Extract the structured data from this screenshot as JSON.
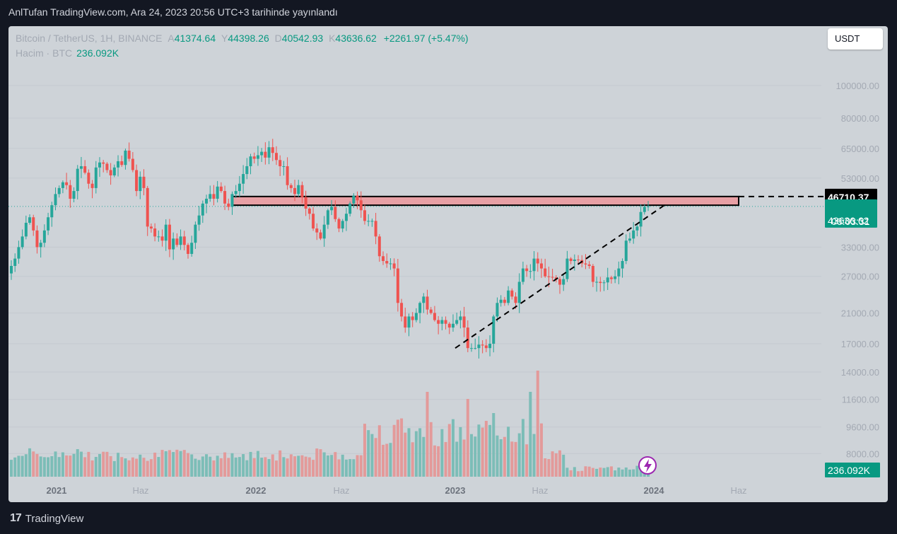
{
  "header": {
    "publish_line": "AnlTufan TradingView.com, Ara 24, 2023 20:56 UTC+3 tarihinde yayınlandı"
  },
  "symbol": {
    "name": "Bitcoin / TetherUS, 1H, BINANCE",
    "o_label": "A",
    "open": "41374.64",
    "h_label": "Y",
    "high": "44398.26",
    "l_label": "D",
    "low": "40542.93",
    "c_label": "K",
    "close": "43636.62",
    "change": "+2261.97 (+5.47%)"
  },
  "volume_legend": {
    "label": "Hacim · BTC",
    "value": "236.092K"
  },
  "currency_button": "USDT",
  "price_labels": {
    "level": "46710.37",
    "last": "43636.62",
    "countdown": "06:03:31",
    "volume": "236.092K"
  },
  "footer": {
    "logo_glyph": "17",
    "brand": "TradingView"
  },
  "colors": {
    "up": "#26a69a",
    "down": "#ef5350",
    "up_volume": "#7cbdb7",
    "down_volume": "#e39a9a",
    "zone_fill": "#e8a0a5",
    "last_price_bg": "#089981",
    "level_bg": "#000000",
    "background": "#ced3d8"
  },
  "chart_data": {
    "type": "candlestick",
    "scale": "log",
    "y_ticks": [
      "100000.00",
      "80000.00",
      "65000.00",
      "53000.00",
      "33000.00",
      "27000.00",
      "21000.00",
      "17000.00",
      "14000.00",
      "11600.00",
      "9600.00",
      "8000.00"
    ],
    "x_ticks": [
      "2021",
      "Haz",
      "2022",
      "Haz",
      "2023",
      "Haz",
      "2024",
      "Haz"
    ],
    "last_price": 43636.62,
    "resistance_zone": {
      "from": 44000,
      "to": 46710.37,
      "start": "2021-11",
      "end": "2024-04"
    },
    "trendline": {
      "from": {
        "date": "2022-12",
        "price": 16500
      },
      "to": {
        "date": "2023-12",
        "price": 44000
      }
    },
    "weekly_closes": [
      29000,
      30500,
      33000,
      35500,
      39000,
      40500,
      37000,
      33000,
      34000,
      37000,
      40500,
      44000,
      47500,
      49500,
      51500,
      50500,
      46000,
      48500,
      56500,
      57500,
      55000,
      51000,
      49500,
      57000,
      59000,
      58500,
      56000,
      54000,
      57000,
      59500,
      58000,
      64000,
      60500,
      56000,
      48500,
      53500,
      49500,
      38000,
      37500,
      35500,
      35500,
      34500,
      38500,
      32500,
      35000,
      33500,
      35500,
      33500,
      31500,
      34000,
      38500,
      41000,
      44500,
      46000,
      47500,
      46000,
      50000,
      48500,
      44500,
      43500,
      47500,
      48500,
      51000,
      54500,
      57500,
      61500,
      60500,
      62000,
      63500,
      61000,
      65500,
      63000,
      60000,
      57500,
      57500,
      50500,
      49500,
      47500,
      50500,
      46500,
      43000,
      41500,
      37500,
      36500,
      35000,
      38500,
      42500,
      43500,
      40000,
      37500,
      39500,
      41500,
      44500,
      47000,
      45500,
      42500,
      39500,
      39500,
      39500,
      35500,
      31000,
      30000,
      29500,
      29500,
      28500,
      22500,
      20500,
      19000,
      20500,
      20000,
      21000,
      22500,
      23500,
      21500,
      21000,
      20000,
      19500,
      20000,
      19500,
      19000,
      19500,
      20000,
      20500,
      19000,
      16500,
      16500,
      16500,
      16900,
      16800,
      16500,
      17000,
      20500,
      22500,
      23000,
      22500,
      24500,
      23500,
      22500,
      26000,
      28500,
      28000,
      28000,
      30500,
      29500,
      28500,
      27000,
      26900,
      26800,
      26500,
      25500,
      26500,
      30500,
      30000,
      30300,
      30200,
      29500,
      29300,
      29000,
      26000,
      26000,
      25800,
      25900,
      26800,
      26500,
      27000,
      28500,
      30000,
      34500,
      35000,
      37000,
      38000,
      42000,
      43500,
      43636.62
    ]
  }
}
